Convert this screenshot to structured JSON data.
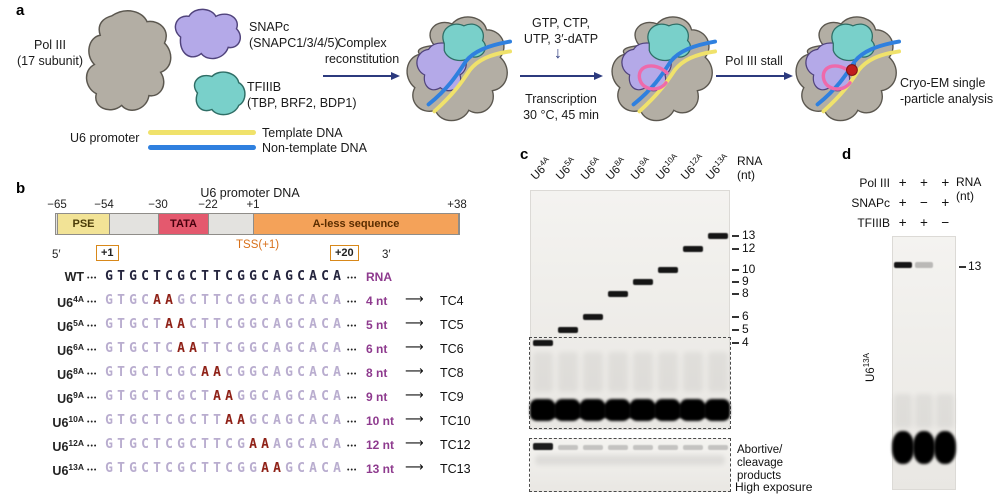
{
  "colors": {
    "template_dna_yellow": "#f0e26b",
    "nontemplate_dna_blue": "#2f80df",
    "rna_pink": "#ee6aab",
    "pol3_gray": "#b3aea4",
    "snapc_purple": "#b4a9e8",
    "tfiiib_teal": "#79d0ca",
    "pse_yellow": "#f2e396",
    "tata_red": "#e4596e",
    "aless_orange": "#f4a259",
    "mutation_red": "#8f2117",
    "rna_label_purple": "#8e3a8e",
    "stall_dot_red": "#c01d1d",
    "arrow_navy": "#2c3a7e"
  },
  "panel_a": {
    "label": "a",
    "pol3_label": "Pol III\n(17 subunit)",
    "snapc_label": "SNAPc\n(SNAPC1/3/4/5)",
    "tfiiib_label": "TFIIIB\n(TBP, BRF2, BDP1)",
    "u6_promoter": "U6 promoter",
    "template_dna": "Template DNA",
    "nontemplate_dna": "Non-template DNA",
    "step1": "Complex\nreconstitution",
    "ntp_mix": "GTP, CTP,\nUTP, 3′-dATP",
    "down_arrow": "↓",
    "transcription": "Transcription\n30 °C, 45 min",
    "stall": "Pol III stall",
    "cryoem": "Cryo-EM single\n-particle analysis"
  },
  "panel_b": {
    "label": "b",
    "title": "U6 promoter DNA",
    "coords": [
      "−65",
      "−54",
      "−30",
      "−22",
      "+1",
      "+38"
    ],
    "pse": "PSE",
    "tata": "TATA",
    "aless": "A-less sequence",
    "tss": "TSS(+1)",
    "five_prime": "5′",
    "plus1": "+1",
    "plus20": "+20",
    "three_prime": "3′",
    "dots": "•••",
    "arrow": "⟶",
    "rows": [
      {
        "base": "WT",
        "sup": "",
        "seq": "GTGCTCGCTTCGGCAGCACA",
        "mut_start": -1,
        "tail": "RNA",
        "tc": ""
      },
      {
        "base": "U6",
        "sup": "4A",
        "seq": "GTGCAAGCTTCGGCAGCACA",
        "mut_start": 4,
        "tail": "4 nt",
        "tc": "TC4"
      },
      {
        "base": "U6",
        "sup": "5A",
        "seq": "GTGCTAACTTCGGCAGCACA",
        "mut_start": 5,
        "tail": "5 nt",
        "tc": "TC5"
      },
      {
        "base": "U6",
        "sup": "6A",
        "seq": "GTGCTCAATTCGGCAGCACA",
        "mut_start": 6,
        "tail": "6 nt",
        "tc": "TC6"
      },
      {
        "base": "U6",
        "sup": "8A",
        "seq": "GTGCTCGCAACGGCAGCACA",
        "mut_start": 8,
        "tail": "8 nt",
        "tc": "TC8"
      },
      {
        "base": "U6",
        "sup": "9A",
        "seq": "GTGCTCGCTAAGGCAGCACA",
        "mut_start": 9,
        "tail": "9 nt",
        "tc": "TC9"
      },
      {
        "base": "U6",
        "sup": "10A",
        "seq": "GTGCTCGCTTAAGCAGCACA",
        "mut_start": 10,
        "tail": "10 nt",
        "tc": "TC10"
      },
      {
        "base": "U6",
        "sup": "12A",
        "seq": "GTGCTCGCTTCGAAAGCACA",
        "mut_start": 12,
        "tail": "12 nt",
        "tc": "TC12"
      },
      {
        "base": "U6",
        "sup": "13A",
        "seq": "GTGCTCGCTTCGGAAGCACA",
        "mut_start": 13,
        "tail": "13 nt",
        "tc": "TC13"
      }
    ]
  },
  "panel_c": {
    "label": "c",
    "lanes": [
      {
        "base": "U6",
        "sup": "4A",
        "nt": 4
      },
      {
        "base": "U6",
        "sup": "5A",
        "nt": 5
      },
      {
        "base": "U6",
        "sup": "6A",
        "nt": 6
      },
      {
        "base": "U6",
        "sup": "8A",
        "nt": 8
      },
      {
        "base": "U6",
        "sup": "9A",
        "nt": 9
      },
      {
        "base": "U6",
        "sup": "10A",
        "nt": 10
      },
      {
        "base": "U6",
        "sup": "12A",
        "nt": 12
      },
      {
        "base": "U6",
        "sup": "13A",
        "nt": 13
      }
    ],
    "rna_nt": "RNA\n(nt)",
    "markers": [
      13,
      12,
      10,
      9,
      8,
      6,
      5,
      4
    ],
    "abortive": "Abortive/\ncleavage\nproducts",
    "high_exposure": "High exposure"
  },
  "panel_d": {
    "label": "d",
    "factors": [
      {
        "name": "Pol III",
        "vals": [
          "+",
          "+",
          "+"
        ]
      },
      {
        "name": "SNAPc",
        "vals": [
          "+",
          "−",
          "+"
        ]
      },
      {
        "name": "TFIIIB",
        "vals": [
          "+",
          "+",
          "−"
        ]
      }
    ],
    "rna_nt": "RNA\n(nt)",
    "marker": "13",
    "gel_label_base": "U6",
    "gel_label_sup": "13A",
    "band_intensities": [
      1,
      0.25,
      0
    ]
  }
}
